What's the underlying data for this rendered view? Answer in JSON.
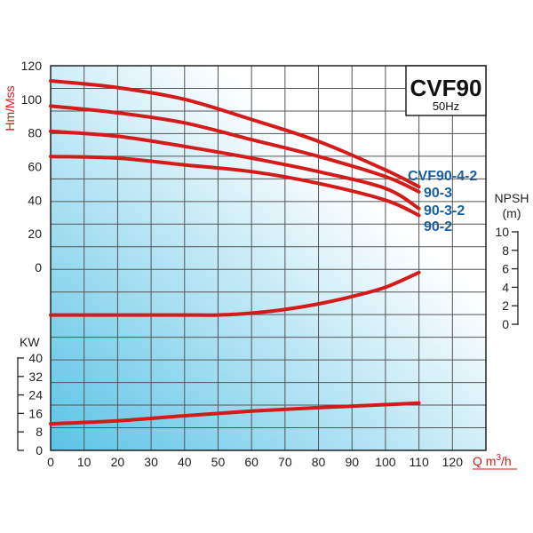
{
  "chart_data": {
    "type": "line",
    "title": "CVF90",
    "subtitle": "50Hz",
    "colors": {
      "curve": "#d51a1a",
      "label": "#1a5fa0",
      "grid": "#555555",
      "gradient_start": "#5bc3e6",
      "gradient_end": "#ffffff"
    },
    "x": {
      "label": "Q m³/h",
      "label_prefix": "Q m",
      "label_sup": "3",
      "label_suffix": "/h",
      "ticks": [
        "0",
        "10",
        "20",
        "30",
        "40",
        "50",
        "60",
        "70",
        "80",
        "90",
        "100",
        "110",
        "120"
      ],
      "range": [
        0,
        130
      ]
    },
    "head": {
      "label": "Hm/Mss",
      "ticks": [
        "120",
        "100",
        "80",
        "60",
        "40",
        "20",
        "0"
      ],
      "range": [
        0,
        120
      ],
      "series": [
        {
          "name": "CVF90-4-2",
          "x": [
            0,
            20,
            40,
            60,
            80,
            100,
            110
          ],
          "y": [
            111,
            107,
            100,
            88,
            75,
            58,
            48
          ]
        },
        {
          "name": "90-3",
          "x": [
            0,
            20,
            40,
            60,
            80,
            100,
            110
          ],
          "y": [
            96,
            92,
            86,
            76,
            66,
            54,
            45
          ]
        },
        {
          "name": "90-3-2",
          "x": [
            0,
            20,
            40,
            60,
            80,
            100,
            110
          ],
          "y": [
            81,
            78,
            72,
            65,
            57,
            47,
            35
          ]
        },
        {
          "name": "90-2",
          "x": [
            0,
            20,
            40,
            60,
            80,
            100,
            110
          ],
          "y": [
            66,
            65,
            61,
            57,
            50,
            40,
            31
          ]
        }
      ]
    },
    "npsh": {
      "label_line1": "NPSH",
      "label_line2": "(m)",
      "ticks": [
        "10",
        "8",
        "6",
        "4",
        "2",
        "0"
      ],
      "range": [
        0,
        10
      ],
      "series": {
        "x": [
          0,
          20,
          40,
          50,
          60,
          70,
          80,
          90,
          100,
          110
        ],
        "y": [
          1.0,
          1.0,
          1.0,
          1.0,
          1.2,
          1.6,
          2.2,
          3.0,
          4.0,
          5.6
        ]
      }
    },
    "power": {
      "label": "KW",
      "ticks": [
        "40",
        "32",
        "24",
        "16",
        "8",
        "0"
      ],
      "range": [
        0,
        40
      ],
      "series": {
        "x": [
          0,
          20,
          40,
          60,
          80,
          100,
          110
        ],
        "y": [
          11.5,
          12.8,
          15.0,
          17.0,
          18.5,
          19.8,
          20.5
        ]
      }
    }
  }
}
